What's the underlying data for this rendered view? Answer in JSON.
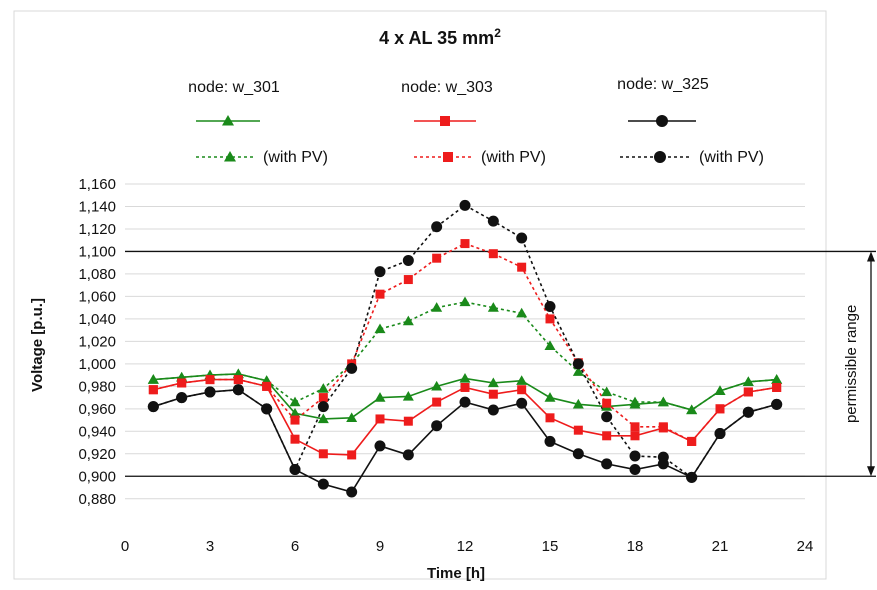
{
  "chart_data": {
    "type": "line",
    "title": "4 x AL 35 mm",
    "title_superscript": "2",
    "xlabel": "Time [h]",
    "ylabel": "Voltage [p.u.]",
    "xlim": [
      0,
      24
    ],
    "ylim": [
      0.87,
      1.16
    ],
    "x_ticks": [
      0,
      3,
      6,
      9,
      12,
      15,
      18,
      21,
      24
    ],
    "x_tick_labels": [
      "0",
      "3",
      "6",
      "9",
      "12",
      "15",
      "18",
      "21",
      "24"
    ],
    "y_ticks": [
      0.88,
      0.9,
      0.92,
      0.94,
      0.96,
      0.98,
      1.0,
      1.02,
      1.04,
      1.06,
      1.08,
      1.1,
      1.12,
      1.14,
      1.16
    ],
    "y_tick_labels": [
      "0,880",
      "0,900",
      "0,920",
      "0,940",
      "0,960",
      "0,980",
      "1,000",
      "1,020",
      "1,040",
      "1,060",
      "1,080",
      "1,100",
      "1,120",
      "1,140",
      "1,160"
    ],
    "grid": true,
    "limit_lines": [
      0.9,
      1.1
    ],
    "annotation": "permissible range",
    "legend_placement": "top",
    "x": [
      1,
      2,
      3,
      4,
      5,
      6,
      7,
      8,
      9,
      10,
      11,
      12,
      13,
      14,
      15,
      16,
      17,
      18,
      19,
      20,
      21,
      22,
      23
    ],
    "series": [
      {
        "name": "node: w_301",
        "legend_label": "",
        "color": "#1a8a1a",
        "marker": "triangle",
        "dash": "solid",
        "values": [
          0.986,
          0.988,
          0.99,
          0.991,
          0.985,
          0.956,
          0.951,
          0.952,
          0.97,
          0.971,
          0.98,
          0.987,
          0.983,
          0.985,
          0.97,
          0.964,
          0.962,
          0.964,
          0.966,
          0.959,
          0.976,
          0.984,
          0.986
        ]
      },
      {
        "name": "node: w_303",
        "legend_label": "",
        "color": "#ee1c1c",
        "marker": "square",
        "dash": "solid",
        "values": [
          0.977,
          0.983,
          0.986,
          0.986,
          0.98,
          0.933,
          0.92,
          0.919,
          0.951,
          0.949,
          0.966,
          0.979,
          0.973,
          0.977,
          0.952,
          0.941,
          0.936,
          0.936,
          0.943,
          0.931,
          0.96,
          0.975,
          0.979
        ]
      },
      {
        "name": "node: w_325",
        "legend_label": "",
        "color": "#111111",
        "marker": "circle",
        "dash": "solid",
        "values": [
          0.962,
          0.97,
          0.975,
          0.977,
          0.96,
          0.906,
          0.893,
          0.886,
          0.927,
          0.919,
          0.945,
          0.966,
          0.959,
          0.965,
          0.931,
          0.92,
          0.911,
          0.906,
          0.911,
          0.899,
          0.938,
          0.957,
          0.964
        ]
      },
      {
        "name": "",
        "legend_label": "(with PV)",
        "color": "#1a8a1a",
        "marker": "triangle",
        "dash": "dotted",
        "values": [
          0.986,
          0.988,
          0.99,
          0.991,
          0.985,
          0.966,
          0.978,
          1.0,
          1.031,
          1.038,
          1.05,
          1.055,
          1.05,
          1.045,
          1.016,
          0.993,
          0.975,
          0.966,
          0.966,
          0.959,
          0.976,
          0.984,
          0.986
        ]
      },
      {
        "name": "",
        "legend_label": "(with PV)",
        "color": "#ee1c1c",
        "marker": "square",
        "dash": "dotted",
        "values": [
          0.977,
          0.983,
          0.986,
          0.986,
          0.98,
          0.95,
          0.97,
          1.0,
          1.062,
          1.075,
          1.094,
          1.107,
          1.098,
          1.086,
          1.04,
          1.001,
          0.965,
          0.944,
          0.944,
          0.931,
          0.96,
          0.975,
          0.979
        ]
      },
      {
        "name": "",
        "legend_label": "(with PV)",
        "color": "#111111",
        "marker": "circle",
        "dash": "dotted",
        "values": [
          0.962,
          0.97,
          0.975,
          0.977,
          0.96,
          0.906,
          0.962,
          0.996,
          1.082,
          1.092,
          1.122,
          1.141,
          1.127,
          1.112,
          1.051,
          1.0,
          0.953,
          0.918,
          0.917,
          0.899,
          0.938,
          0.957,
          0.964
        ]
      }
    ]
  }
}
